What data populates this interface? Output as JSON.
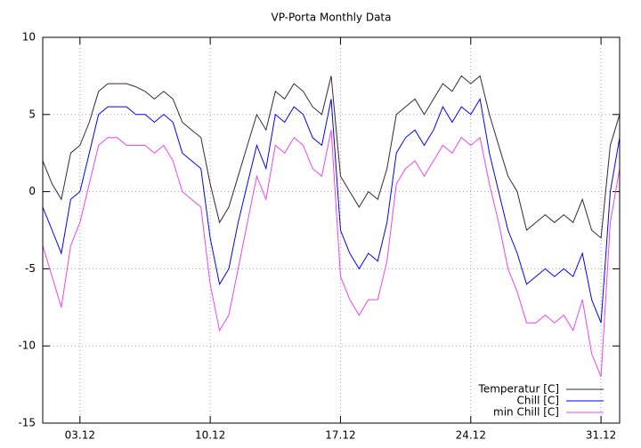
{
  "chart_data": {
    "type": "line",
    "title": "VP-Porta Monthly Data",
    "x": [
      1,
      1.5,
      2,
      2.5,
      3,
      3.5,
      4,
      4.5,
      5,
      5.5,
      6,
      6.5,
      7,
      7.5,
      8,
      8.5,
      9,
      9.5,
      10,
      10.5,
      11,
      11.5,
      12,
      12.5,
      13,
      13.5,
      14,
      14.5,
      15,
      15.5,
      16,
      16.5,
      17,
      17.5,
      18,
      18.5,
      19,
      19.5,
      20,
      20.5,
      21,
      21.5,
      22,
      22.5,
      23,
      23.5,
      24,
      24.5,
      25,
      25.5,
      26,
      26.5,
      27,
      27.5,
      28,
      28.5,
      29,
      29.5,
      30,
      30.5,
      31,
      31.5,
      32
    ],
    "series": [
      {
        "name": "Temperatur [C]",
        "color": "#3a2438",
        "values": [
          2,
          0.5,
          -0.5,
          2.5,
          3,
          4.5,
          6.5,
          7,
          7,
          7,
          6.8,
          6.5,
          6,
          6.5,
          6,
          4.5,
          4,
          3.5,
          0.5,
          -2,
          -1,
          1,
          3,
          5,
          4,
          6.5,
          6,
          7,
          6.5,
          5.5,
          5,
          7.5,
          1,
          0,
          -1,
          0,
          -0.5,
          1.5,
          5,
          5.5,
          6,
          5,
          6,
          7,
          6.5,
          7.5,
          7,
          7.5,
          5,
          3,
          1,
          0,
          -2.5,
          -2,
          -1.5,
          -2,
          -1.5,
          -2,
          -0.5,
          -2.5,
          -3,
          3,
          5
        ]
      },
      {
        "name": "Chill [C]",
        "color": "#0000ff",
        "values": [
          -1,
          -2.5,
          -4,
          -0.5,
          0,
          2.5,
          5,
          5.5,
          5.5,
          5.5,
          5,
          5,
          4.5,
          5,
          4.5,
          2.5,
          2,
          1.5,
          -3,
          -6,
          -5,
          -2,
          0.5,
          3,
          1.5,
          5,
          4.5,
          5.5,
          5,
          3.5,
          3,
          6,
          -2.5,
          -4,
          -5,
          -4,
          -4.5,
          -2,
          2.5,
          3.5,
          4,
          3,
          4,
          5.5,
          4.5,
          5.5,
          5,
          6,
          2.5,
          0,
          -2.5,
          -4,
          -6,
          -5.5,
          -5,
          -5.5,
          -5,
          -5.5,
          -4,
          -7,
          -8.5,
          0,
          3.5
        ]
      },
      {
        "name": "min Chill [C]",
        "color": "#ee44ee",
        "values": [
          -3.5,
          -5.5,
          -7.5,
          -3.5,
          -2,
          0.5,
          3,
          3.5,
          3.5,
          3,
          3,
          3,
          2.5,
          3,
          2,
          0,
          -0.5,
          -1,
          -6,
          -9,
          -8,
          -5,
          -2,
          1,
          -0.5,
          3,
          2.5,
          3.5,
          3,
          1.5,
          1,
          4,
          -5.5,
          -7,
          -8,
          -7,
          -7,
          -4.5,
          0.5,
          1.5,
          2,
          1,
          2,
          3,
          2.5,
          3.5,
          3,
          3.5,
          0.5,
          -2,
          -5,
          -6.5,
          -8.5,
          -8.5,
          -8,
          -8.5,
          -8,
          -9,
          -7,
          -10.5,
          -12,
          -2,
          1.5
        ]
      }
    ],
    "xlim": [
      1,
      32
    ],
    "xticks": [
      {
        "value": 3,
        "label": "03.12"
      },
      {
        "value": 10,
        "label": "10.12"
      },
      {
        "value": 17,
        "label": "17.12"
      },
      {
        "value": 24,
        "label": "24.12"
      },
      {
        "value": 31,
        "label": "31.12"
      }
    ],
    "ylim": [
      -15,
      10
    ],
    "yticks": [
      -15,
      -10,
      -5,
      0,
      5,
      10
    ],
    "grid": true,
    "legend": "bottom-right"
  }
}
